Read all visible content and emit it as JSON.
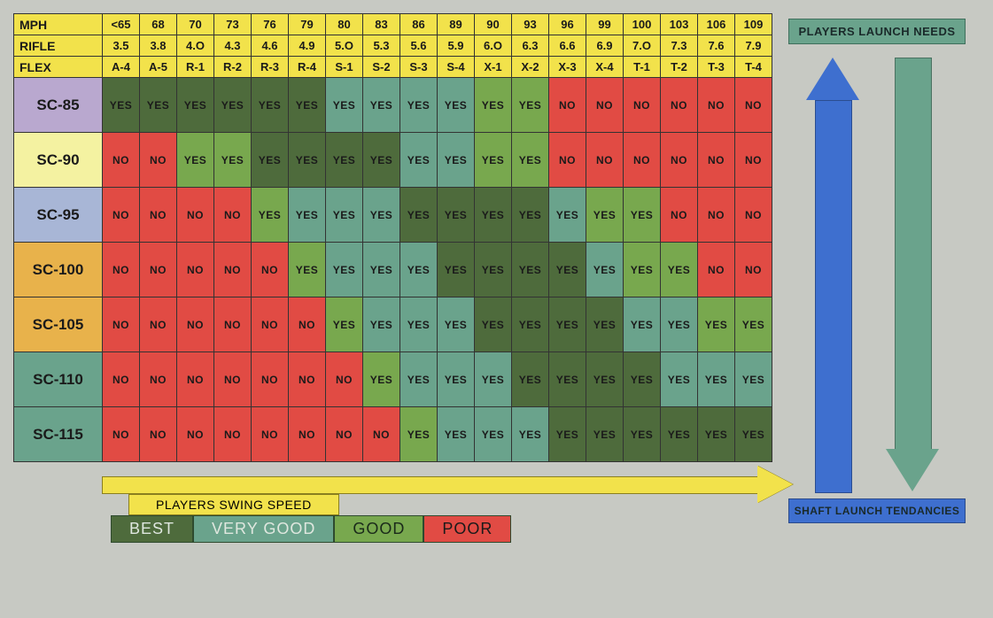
{
  "type": "heatmap-table",
  "header_rows": [
    {
      "label": "MPH",
      "values": [
        "<65",
        "68",
        "70",
        "73",
        "76",
        "79",
        "80",
        "83",
        "86",
        "89",
        "90",
        "93",
        "96",
        "99",
        "100",
        "103",
        "106",
        "109"
      ]
    },
    {
      "label": "RIFLE",
      "values": [
        "3.5",
        "3.8",
        "4.O",
        "4.3",
        "4.6",
        "4.9",
        "5.O",
        "5.3",
        "5.6",
        "5.9",
        "6.O",
        "6.3",
        "6.6",
        "6.9",
        "7.O",
        "7.3",
        "7.6",
        "7.9"
      ]
    },
    {
      "label": "FLEX",
      "values": [
        "A-4",
        "A-5",
        "R-1",
        "R-2",
        "R-3",
        "R-4",
        "S-1",
        "S-2",
        "S-3",
        "S-4",
        "X-1",
        "X-2",
        "X-3",
        "X-4",
        "T-1",
        "T-2",
        "T-3",
        "T-4"
      ]
    }
  ],
  "header_bg": "#f2e24b",
  "row_header_colors": [
    "#b9a8cf",
    "#f4f2a1",
    "#a8b6d6",
    "#e8b24b",
    "#e8b24b",
    "#6aa38c",
    "#6aa38c"
  ],
  "row_labels": [
    "SC-85",
    "SC-90",
    "SC-95",
    "SC-100",
    "SC-105",
    "SC-110",
    "SC-115"
  ],
  "cell_text": {
    "yes": "YES",
    "no": "NO"
  },
  "colors": {
    "best": "#4e6b3c",
    "very_good": "#6aa38c",
    "good": "#78a84e",
    "poor": "#e14b44"
  },
  "legend": {
    "segments": [
      {
        "label": "BEST",
        "color_key": "best",
        "text_color": "#dfe7df"
      },
      {
        "label": "VERY GOOD",
        "color_key": "very_good",
        "text_color": "#dfe7df"
      },
      {
        "label": "GOOD",
        "color_key": "good",
        "text_color": "#1a2a1a"
      },
      {
        "label": "POOR",
        "color_key": "poor",
        "text_color": "#1a1a1a"
      }
    ]
  },
  "data_rows": [
    {
      "label_key": 0,
      "cells": [
        {
          "t": "yes",
          "c": "best"
        },
        {
          "t": "yes",
          "c": "best"
        },
        {
          "t": "yes",
          "c": "best"
        },
        {
          "t": "yes",
          "c": "best"
        },
        {
          "t": "yes",
          "c": "best"
        },
        {
          "t": "yes",
          "c": "best"
        },
        {
          "t": "yes",
          "c": "very_good"
        },
        {
          "t": "yes",
          "c": "very_good"
        },
        {
          "t": "yes",
          "c": "very_good"
        },
        {
          "t": "yes",
          "c": "very_good"
        },
        {
          "t": "yes",
          "c": "good"
        },
        {
          "t": "yes",
          "c": "good"
        },
        {
          "t": "no",
          "c": "poor"
        },
        {
          "t": "no",
          "c": "poor"
        },
        {
          "t": "no",
          "c": "poor"
        },
        {
          "t": "no",
          "c": "poor"
        },
        {
          "t": "no",
          "c": "poor"
        },
        {
          "t": "no",
          "c": "poor"
        }
      ]
    },
    {
      "label_key": 1,
      "cells": [
        {
          "t": "no",
          "c": "poor"
        },
        {
          "t": "no",
          "c": "poor"
        },
        {
          "t": "yes",
          "c": "good"
        },
        {
          "t": "yes",
          "c": "good"
        },
        {
          "t": "yes",
          "c": "best"
        },
        {
          "t": "yes",
          "c": "best"
        },
        {
          "t": "yes",
          "c": "best"
        },
        {
          "t": "yes",
          "c": "best"
        },
        {
          "t": "yes",
          "c": "very_good"
        },
        {
          "t": "yes",
          "c": "very_good"
        },
        {
          "t": "yes",
          "c": "good"
        },
        {
          "t": "yes",
          "c": "good"
        },
        {
          "t": "no",
          "c": "poor"
        },
        {
          "t": "no",
          "c": "poor"
        },
        {
          "t": "no",
          "c": "poor"
        },
        {
          "t": "no",
          "c": "poor"
        },
        {
          "t": "no",
          "c": "poor"
        },
        {
          "t": "no",
          "c": "poor"
        }
      ]
    },
    {
      "label_key": 2,
      "cells": [
        {
          "t": "no",
          "c": "poor"
        },
        {
          "t": "no",
          "c": "poor"
        },
        {
          "t": "no",
          "c": "poor"
        },
        {
          "t": "no",
          "c": "poor"
        },
        {
          "t": "yes",
          "c": "good"
        },
        {
          "t": "yes",
          "c": "very_good"
        },
        {
          "t": "yes",
          "c": "very_good"
        },
        {
          "t": "yes",
          "c": "very_good"
        },
        {
          "t": "yes",
          "c": "best"
        },
        {
          "t": "yes",
          "c": "best"
        },
        {
          "t": "yes",
          "c": "best"
        },
        {
          "t": "yes",
          "c": "best"
        },
        {
          "t": "yes",
          "c": "very_good"
        },
        {
          "t": "yes",
          "c": "good"
        },
        {
          "t": "yes",
          "c": "good"
        },
        {
          "t": "no",
          "c": "poor"
        },
        {
          "t": "no",
          "c": "poor"
        },
        {
          "t": "no",
          "c": "poor"
        }
      ]
    },
    {
      "label_key": 3,
      "cells": [
        {
          "t": "no",
          "c": "poor"
        },
        {
          "t": "no",
          "c": "poor"
        },
        {
          "t": "no",
          "c": "poor"
        },
        {
          "t": "no",
          "c": "poor"
        },
        {
          "t": "no",
          "c": "poor"
        },
        {
          "t": "yes",
          "c": "good"
        },
        {
          "t": "yes",
          "c": "very_good"
        },
        {
          "t": "yes",
          "c": "very_good"
        },
        {
          "t": "yes",
          "c": "very_good"
        },
        {
          "t": "yes",
          "c": "best"
        },
        {
          "t": "yes",
          "c": "best"
        },
        {
          "t": "yes",
          "c": "best"
        },
        {
          "t": "yes",
          "c": "best"
        },
        {
          "t": "yes",
          "c": "very_good"
        },
        {
          "t": "yes",
          "c": "good"
        },
        {
          "t": "yes",
          "c": "good"
        },
        {
          "t": "no",
          "c": "poor"
        },
        {
          "t": "no",
          "c": "poor"
        }
      ]
    },
    {
      "label_key": 4,
      "cells": [
        {
          "t": "no",
          "c": "poor"
        },
        {
          "t": "no",
          "c": "poor"
        },
        {
          "t": "no",
          "c": "poor"
        },
        {
          "t": "no",
          "c": "poor"
        },
        {
          "t": "no",
          "c": "poor"
        },
        {
          "t": "no",
          "c": "poor"
        },
        {
          "t": "yes",
          "c": "good"
        },
        {
          "t": "yes",
          "c": "very_good"
        },
        {
          "t": "yes",
          "c": "very_good"
        },
        {
          "t": "yes",
          "c": "very_good"
        },
        {
          "t": "yes",
          "c": "best"
        },
        {
          "t": "yes",
          "c": "best"
        },
        {
          "t": "yes",
          "c": "best"
        },
        {
          "t": "yes",
          "c": "best"
        },
        {
          "t": "yes",
          "c": "very_good"
        },
        {
          "t": "yes",
          "c": "very_good"
        },
        {
          "t": "yes",
          "c": "good"
        },
        {
          "t": "yes",
          "c": "good"
        }
      ]
    },
    {
      "label_key": 5,
      "cells": [
        {
          "t": "no",
          "c": "poor"
        },
        {
          "t": "no",
          "c": "poor"
        },
        {
          "t": "no",
          "c": "poor"
        },
        {
          "t": "no",
          "c": "poor"
        },
        {
          "t": "no",
          "c": "poor"
        },
        {
          "t": "no",
          "c": "poor"
        },
        {
          "t": "no",
          "c": "poor"
        },
        {
          "t": "yes",
          "c": "good"
        },
        {
          "t": "yes",
          "c": "very_good"
        },
        {
          "t": "yes",
          "c": "very_good"
        },
        {
          "t": "yes",
          "c": "very_good"
        },
        {
          "t": "yes",
          "c": "best"
        },
        {
          "t": "yes",
          "c": "best"
        },
        {
          "t": "yes",
          "c": "best"
        },
        {
          "t": "yes",
          "c": "best"
        },
        {
          "t": "yes",
          "c": "very_good"
        },
        {
          "t": "yes",
          "c": "very_good"
        },
        {
          "t": "yes",
          "c": "very_good"
        }
      ]
    },
    {
      "label_key": 6,
      "cells": [
        {
          "t": "no",
          "c": "poor"
        },
        {
          "t": "no",
          "c": "poor"
        },
        {
          "t": "no",
          "c": "poor"
        },
        {
          "t": "no",
          "c": "poor"
        },
        {
          "t": "no",
          "c": "poor"
        },
        {
          "t": "no",
          "c": "poor"
        },
        {
          "t": "no",
          "c": "poor"
        },
        {
          "t": "no",
          "c": "poor"
        },
        {
          "t": "yes",
          "c": "good"
        },
        {
          "t": "yes",
          "c": "very_good"
        },
        {
          "t": "yes",
          "c": "very_good"
        },
        {
          "t": "yes",
          "c": "very_good"
        },
        {
          "t": "yes",
          "c": "best"
        },
        {
          "t": "yes",
          "c": "best"
        },
        {
          "t": "yes",
          "c": "best"
        },
        {
          "t": "yes",
          "c": "best"
        },
        {
          "t": "yes",
          "c": "best"
        },
        {
          "t": "yes",
          "c": "best"
        }
      ]
    }
  ],
  "swing_arrow_label": "PLAYERS SWING SPEED",
  "right_panel": {
    "top_label": "PLAYERS LAUNCH NEEDS",
    "bottom_label": "SHAFT LAUNCH TENDANCIES",
    "up_arrow_color": "#3e6fcf",
    "down_arrow_color": "#6aa38c"
  }
}
